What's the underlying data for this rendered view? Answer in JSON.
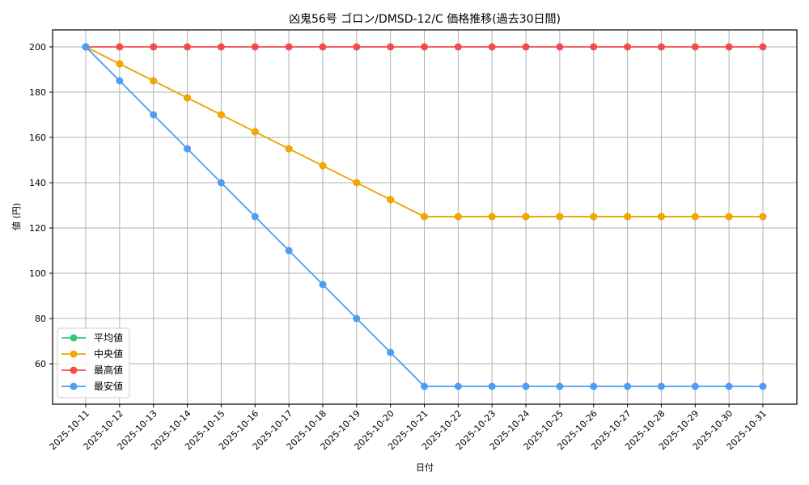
{
  "chart_data": {
    "type": "line",
    "title": "凶鬼56号 ゴロン/DMSD-12/C 価格推移(過去30日間)",
    "xlabel": "日付",
    "ylabel": "値 (円)",
    "ylim": [
      43,
      207
    ],
    "yticks": [
      60,
      80,
      100,
      120,
      140,
      160,
      180,
      200
    ],
    "grid": true,
    "legend_position": "lower left",
    "x": [
      "2025-10-11",
      "2025-10-12",
      "2025-10-13",
      "2025-10-14",
      "2025-10-15",
      "2025-10-16",
      "2025-10-17",
      "2025-10-18",
      "2025-10-19",
      "2025-10-20",
      "2025-10-21",
      "2025-10-22",
      "2025-10-23",
      "2025-10-24",
      "2025-10-25",
      "2025-10-26",
      "2025-10-27",
      "2025-10-28",
      "2025-10-29",
      "2025-10-30",
      "2025-10-31"
    ],
    "series": [
      {
        "name": "平均値",
        "color": "#2ecc71",
        "values": [
          200,
          192.5,
          185,
          177.5,
          170,
          162.5,
          155,
          147.5,
          140,
          132.5,
          125,
          125,
          125,
          125,
          125,
          125,
          125,
          125,
          125,
          125,
          125
        ]
      },
      {
        "name": "中央値",
        "color": "#f5a500",
        "values": [
          200,
          192.5,
          185,
          177.5,
          170,
          162.5,
          155,
          147.5,
          140,
          132.5,
          125,
          125,
          125,
          125,
          125,
          125,
          125,
          125,
          125,
          125,
          125
        ]
      },
      {
        "name": "最高値",
        "color": "#f24b4b",
        "values": [
          200,
          200,
          200,
          200,
          200,
          200,
          200,
          200,
          200,
          200,
          200,
          200,
          200,
          200,
          200,
          200,
          200,
          200,
          200,
          200,
          200
        ]
      },
      {
        "name": "最安値",
        "color": "#4d9df5",
        "values": [
          200,
          185,
          170,
          155,
          140,
          125,
          110,
          95,
          80,
          65,
          50,
          50,
          50,
          50,
          50,
          50,
          50,
          50,
          50,
          50,
          50
        ]
      }
    ]
  }
}
